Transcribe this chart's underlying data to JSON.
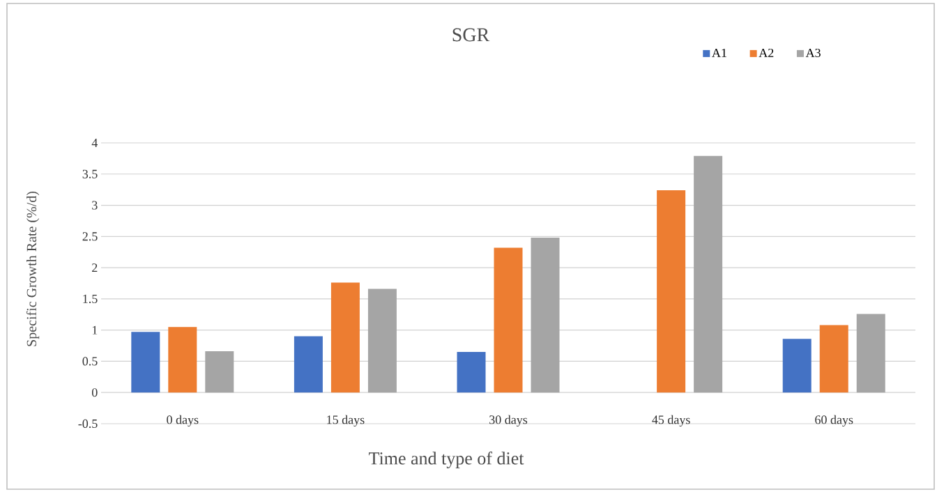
{
  "chart_data": {
    "type": "bar",
    "title": "SGR",
    "xlabel": "Time and type of diet",
    "ylabel": "Specific Growth Rate (%/d)",
    "categories": [
      "0  days",
      "15 days",
      "30 days",
      "45 days",
      "60 days"
    ],
    "series": [
      {
        "name": "A1",
        "color": "#4472c4",
        "values": [
          0.97,
          0.9,
          0.65,
          null,
          0.86
        ]
      },
      {
        "name": "A2",
        "color": "#ed7d31",
        "values": [
          1.05,
          1.76,
          2.32,
          3.24,
          1.08
        ]
      },
      {
        "name": "A3",
        "color": "#a5a5a5",
        "values": [
          0.66,
          1.66,
          2.48,
          3.79,
          1.26
        ]
      }
    ],
    "ylim": [
      -0.5,
      4
    ],
    "yticks": [
      -0.5,
      0,
      0.5,
      1,
      1.5,
      2,
      2.5,
      3,
      3.5,
      4
    ],
    "grid": "y",
    "legend": "top right"
  }
}
